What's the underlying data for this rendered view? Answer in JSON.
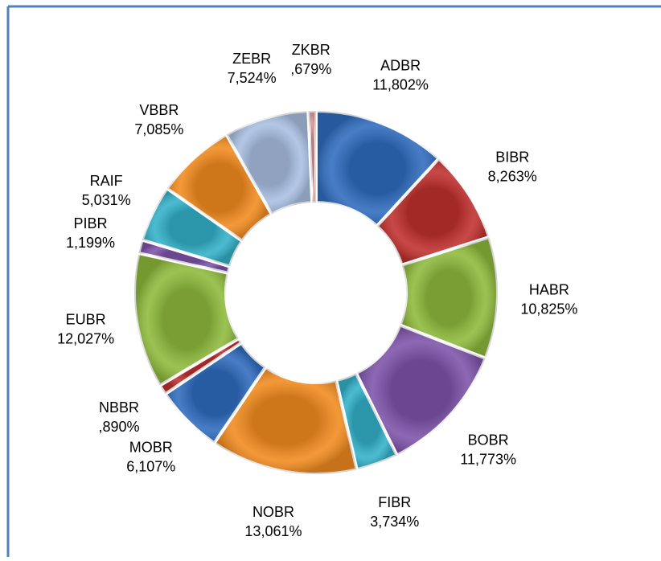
{
  "chart_data": {
    "type": "donut",
    "categories": [
      "ADBR",
      "BIBR",
      "HABR",
      "BOBR",
      "FIBR",
      "NOBR",
      "MOBR",
      "NBBR",
      "EUBR",
      "PIBR",
      "RAIF",
      "VBBR",
      "ZEBR",
      "ZKBR"
    ],
    "values": [
      11.802,
      8.263,
      10.825,
      11.773,
      3.734,
      13.061,
      6.107,
      0.89,
      12.027,
      1.199,
      5.031,
      7.085,
      7.524,
      0.679
    ],
    "value_labels": [
      "11,802%",
      "8,263%",
      "10,825%",
      "11,773%",
      "3,734%",
      "13,061%",
      "6,107%",
      ",890%",
      "12,027%",
      "1,199%",
      "5,031%",
      "7,085%",
      "7,524%",
      ",679%"
    ],
    "colors": [
      "#2f6cbf",
      "#c0302e",
      "#8fba3c",
      "#7d53a9",
      "#33b1c9",
      "#f18b1f",
      "#2f6cbf",
      "#c0302e",
      "#8fba3c",
      "#7d53a9",
      "#33b1c9",
      "#f18b1f",
      "#a9bfe2",
      "#d99694"
    ]
  }
}
